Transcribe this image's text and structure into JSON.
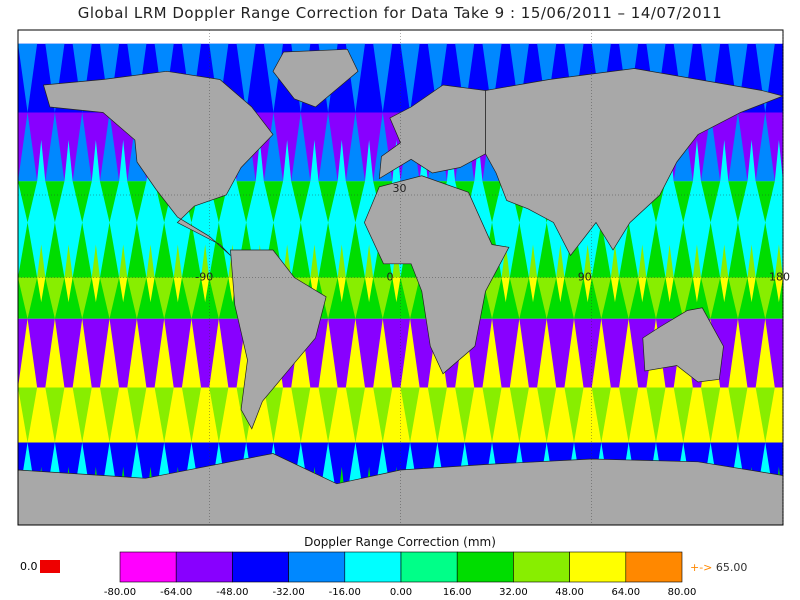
{
  "chart_data": {
    "type": "heatmap",
    "title": "Global LRM Doppler Range Correction for Data Take 9 : 15/06/2011 – 14/07/2011",
    "colorbar_label": "Doppler Range Correction (mm)",
    "lon_ticks": [
      "-90",
      "0",
      "90",
      "180"
    ],
    "lat_ticks": [
      "30"
    ],
    "lon_range": [
      -180,
      180
    ],
    "lat_range": [
      -90,
      90
    ],
    "bin_edges": [
      -80,
      -64,
      -48,
      -32,
      -16,
      0,
      16,
      32,
      48,
      64,
      80
    ],
    "bin_edge_labels": [
      "-80.00",
      "-64.00",
      "-48.00",
      "-32.00",
      "-16.00",
      "0.00",
      "16.00",
      "32.00",
      "48.00",
      "64.00",
      "80.00"
    ],
    "bin_colors": [
      "#ff00ff",
      "#8800ff",
      "#0000ff",
      "#0088ff",
      "#00ffff",
      "#00ff88",
      "#00dd00",
      "#88ee00",
      "#ffff00",
      "#ff8800"
    ],
    "below_value": "0.0",
    "below_color": "#ee0000",
    "above_marker": "+->",
    "above_value": "65.00",
    "latitude_bands": [
      {
        "lat_range": [
          60,
          85
        ],
        "dominant_values": [
          -40,
          -24
        ],
        "pattern": "descending/ascending wedges"
      },
      {
        "lat_range": [
          35,
          60
        ],
        "dominant_values": [
          -56,
          -24,
          -8
        ],
        "pattern": "wedges"
      },
      {
        "lat_range": [
          20,
          35
        ],
        "dominant_values": [
          -8,
          24
        ],
        "pattern": "transition"
      },
      {
        "lat_range": [
          0,
          20
        ],
        "dominant_values": [
          -8,
          24,
          40
        ],
        "pattern": "wedges"
      },
      {
        "lat_range": [
          -15,
          0
        ],
        "dominant_values": [
          24,
          40,
          56
        ],
        "pattern": "wedges"
      },
      {
        "lat_range": [
          -40,
          -15
        ],
        "dominant_values": [
          -56,
          56
        ],
        "pattern": "alternating wedges"
      },
      {
        "lat_range": [
          -60,
          -40
        ],
        "dominant_values": [
          56,
          40
        ],
        "pattern": "wedges"
      },
      {
        "lat_range": [
          -82,
          -60
        ],
        "dominant_values": [
          -40,
          -8,
          24
        ],
        "pattern": "wedges over ice"
      }
    ],
    "grid": true
  }
}
